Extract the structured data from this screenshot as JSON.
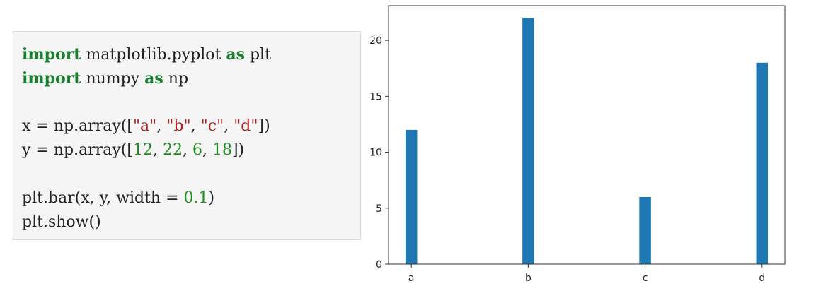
{
  "code": {
    "lines": [
      [
        {
          "t": "kw",
          "v": "import"
        },
        {
          "t": "plain",
          "v": " matplotlib.pyplot "
        },
        {
          "t": "kw",
          "v": "as"
        },
        {
          "t": "plain",
          "v": " plt"
        }
      ],
      [
        {
          "t": "kw",
          "v": "import"
        },
        {
          "t": "plain",
          "v": " numpy "
        },
        {
          "t": "kw",
          "v": "as"
        },
        {
          "t": "plain",
          "v": " np"
        }
      ],
      [],
      [
        {
          "t": "plain",
          "v": "x = np.array(["
        },
        {
          "t": "str",
          "v": "\"a\""
        },
        {
          "t": "plain",
          "v": ", "
        },
        {
          "t": "str",
          "v": "\"b\""
        },
        {
          "t": "plain",
          "v": ", "
        },
        {
          "t": "str",
          "v": "\"c\""
        },
        {
          "t": "plain",
          "v": ", "
        },
        {
          "t": "str",
          "v": "\"d\""
        },
        {
          "t": "plain",
          "v": "])"
        }
      ],
      [
        {
          "t": "plain",
          "v": "y = np.array(["
        },
        {
          "t": "num",
          "v": "12"
        },
        {
          "t": "plain",
          "v": ", "
        },
        {
          "t": "num",
          "v": "22"
        },
        {
          "t": "plain",
          "v": ", "
        },
        {
          "t": "num",
          "v": "6"
        },
        {
          "t": "plain",
          "v": ", "
        },
        {
          "t": "num",
          "v": "18"
        },
        {
          "t": "plain",
          "v": "])"
        }
      ],
      [],
      [
        {
          "t": "plain",
          "v": "plt.bar(x, y, width = "
        },
        {
          "t": "num",
          "v": "0.1"
        },
        {
          "t": "plain",
          "v": ")"
        }
      ],
      [
        {
          "t": "plain",
          "v": "plt.show()"
        }
      ]
    ]
  },
  "chart_data": {
    "type": "bar",
    "categories": [
      "a",
      "b",
      "c",
      "d"
    ],
    "values": [
      12,
      22,
      6,
      18
    ],
    "bar_width": 0.1,
    "title": "",
    "xlabel": "",
    "ylabel": "",
    "ylim": [
      0,
      23.1
    ],
    "yticks": [
      0,
      5,
      10,
      15,
      20
    ],
    "grid": false,
    "bar_color": "#1f77b4"
  }
}
